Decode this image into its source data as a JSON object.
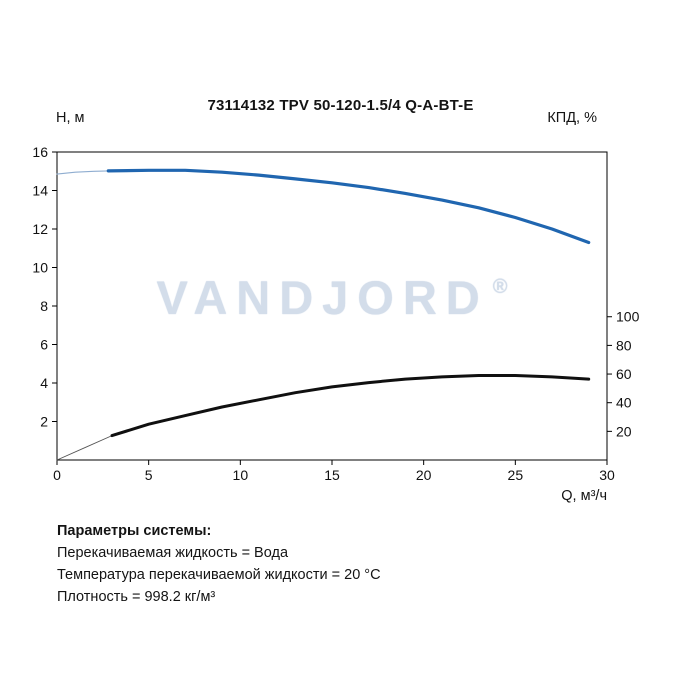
{
  "watermark": {
    "text": "VANDJORD",
    "reg": "®"
  },
  "footer": {
    "heading": "Параметры системы:",
    "lines": [
      "Перекачиваемая жидкость = Вода",
      "Температура перекачиваемой жидкости = 20 °C",
      "Плотность = 998.2 кг/м³"
    ]
  },
  "chart_data": {
    "type": "line",
    "title": "73114132 TPV 50-120-1.5/4 Q-A-BT-E",
    "xlabel": "Q, м³/ч",
    "ylabel_left": "Н, м",
    "ylabel_right": "КПД, %",
    "xlim": [
      0,
      30
    ],
    "ylim_left": [
      0,
      16
    ],
    "ylim_right": [
      0,
      215
    ],
    "x_ticks": [
      0,
      5,
      10,
      15,
      20,
      25,
      30
    ],
    "y_ticks_left": [
      2,
      4,
      6,
      8,
      10,
      12,
      14,
      16
    ],
    "y_ticks_right": [
      20,
      40,
      60,
      80,
      100
    ],
    "grid": false,
    "legend": "none",
    "series": [
      {
        "name": "head-curve-lead",
        "axis": "left",
        "color": "#8fadd0",
        "width": 1.1,
        "x": [
          0,
          1,
          2,
          2.8
        ],
        "y": [
          14.85,
          14.95,
          15.0,
          15.02
        ]
      },
      {
        "name": "head-curve",
        "axis": "left",
        "color": "#2066b0",
        "width": 3.2,
        "x": [
          2.8,
          5,
          7,
          9,
          11,
          13,
          15,
          17,
          19,
          21,
          23,
          25,
          27,
          29
        ],
        "y": [
          15.02,
          15.05,
          15.05,
          14.95,
          14.8,
          14.6,
          14.4,
          14.15,
          13.85,
          13.5,
          13.1,
          12.6,
          12.0,
          11.3
        ]
      },
      {
        "name": "efficiency-curve-lead",
        "axis": "right",
        "color": "#555555",
        "width": 0.9,
        "x": [
          0,
          1.5,
          3
        ],
        "y": [
          0,
          8.5,
          17
        ]
      },
      {
        "name": "efficiency-curve",
        "axis": "right",
        "color": "#101010",
        "width": 3,
        "x": [
          3,
          5,
          7,
          9,
          11,
          13,
          15,
          17,
          19,
          21,
          23,
          25,
          27,
          29
        ],
        "y": [
          17,
          25,
          31,
          37,
          42,
          47,
          51,
          54,
          56.5,
          58,
          59,
          59,
          58,
          56.5
        ]
      }
    ]
  }
}
